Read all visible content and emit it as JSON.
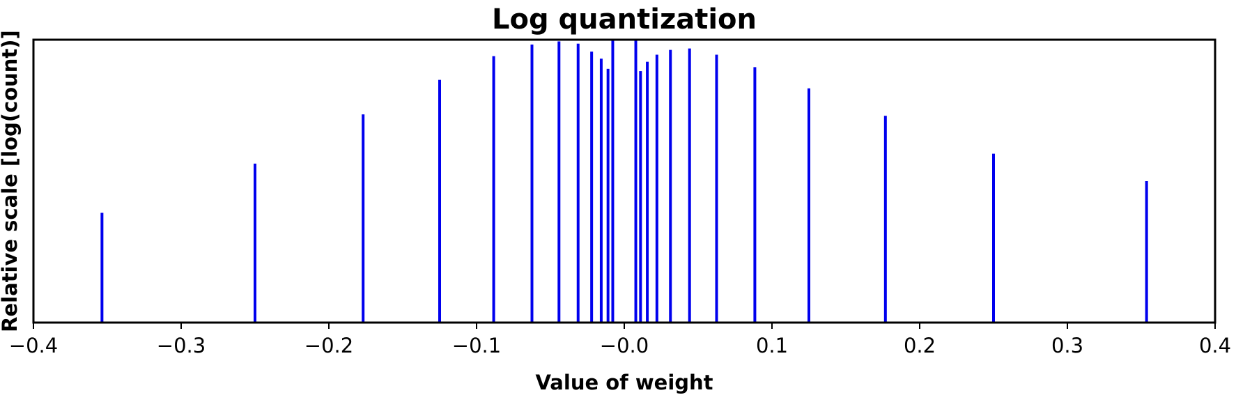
{
  "chart_data": {
    "type": "bar",
    "title": "Log quantization",
    "xlabel": "Value of weight",
    "ylabel": "Relative scale [log(count)]",
    "xlim": [
      -0.4,
      0.4
    ],
    "xticks": [
      -0.4,
      -0.3,
      -0.2,
      -0.1,
      0.0,
      0.1,
      0.2,
      0.3,
      0.4
    ],
    "xtick_labels": [
      "−0.4",
      "−0.3",
      "−0.2",
      "−0.1",
      "−0.0",
      "0.1",
      "0.2",
      "0.3",
      "0.4"
    ],
    "ylim": [
      0,
      1
    ],
    "y_ticks_shown": false,
    "grid": false,
    "legend": "none",
    "color": "#0000ee",
    "x": [
      -0.3536,
      -0.25,
      -0.1768,
      -0.125,
      -0.0884,
      -0.0625,
      -0.0442,
      -0.03125,
      -0.0221,
      -0.0156,
      -0.011,
      -0.0078,
      0.0078,
      0.011,
      0.0156,
      0.0221,
      0.03125,
      0.0442,
      0.0625,
      0.0884,
      0.125,
      0.1768,
      0.25,
      0.3536
    ],
    "values": [
      0.388,
      0.562,
      0.736,
      0.858,
      0.942,
      0.983,
      0.994,
      0.986,
      0.958,
      0.933,
      0.897,
      1.0,
      1.0,
      0.889,
      0.922,
      0.947,
      0.964,
      0.969,
      0.947,
      0.903,
      0.828,
      0.731,
      0.597,
      0.5
    ]
  }
}
